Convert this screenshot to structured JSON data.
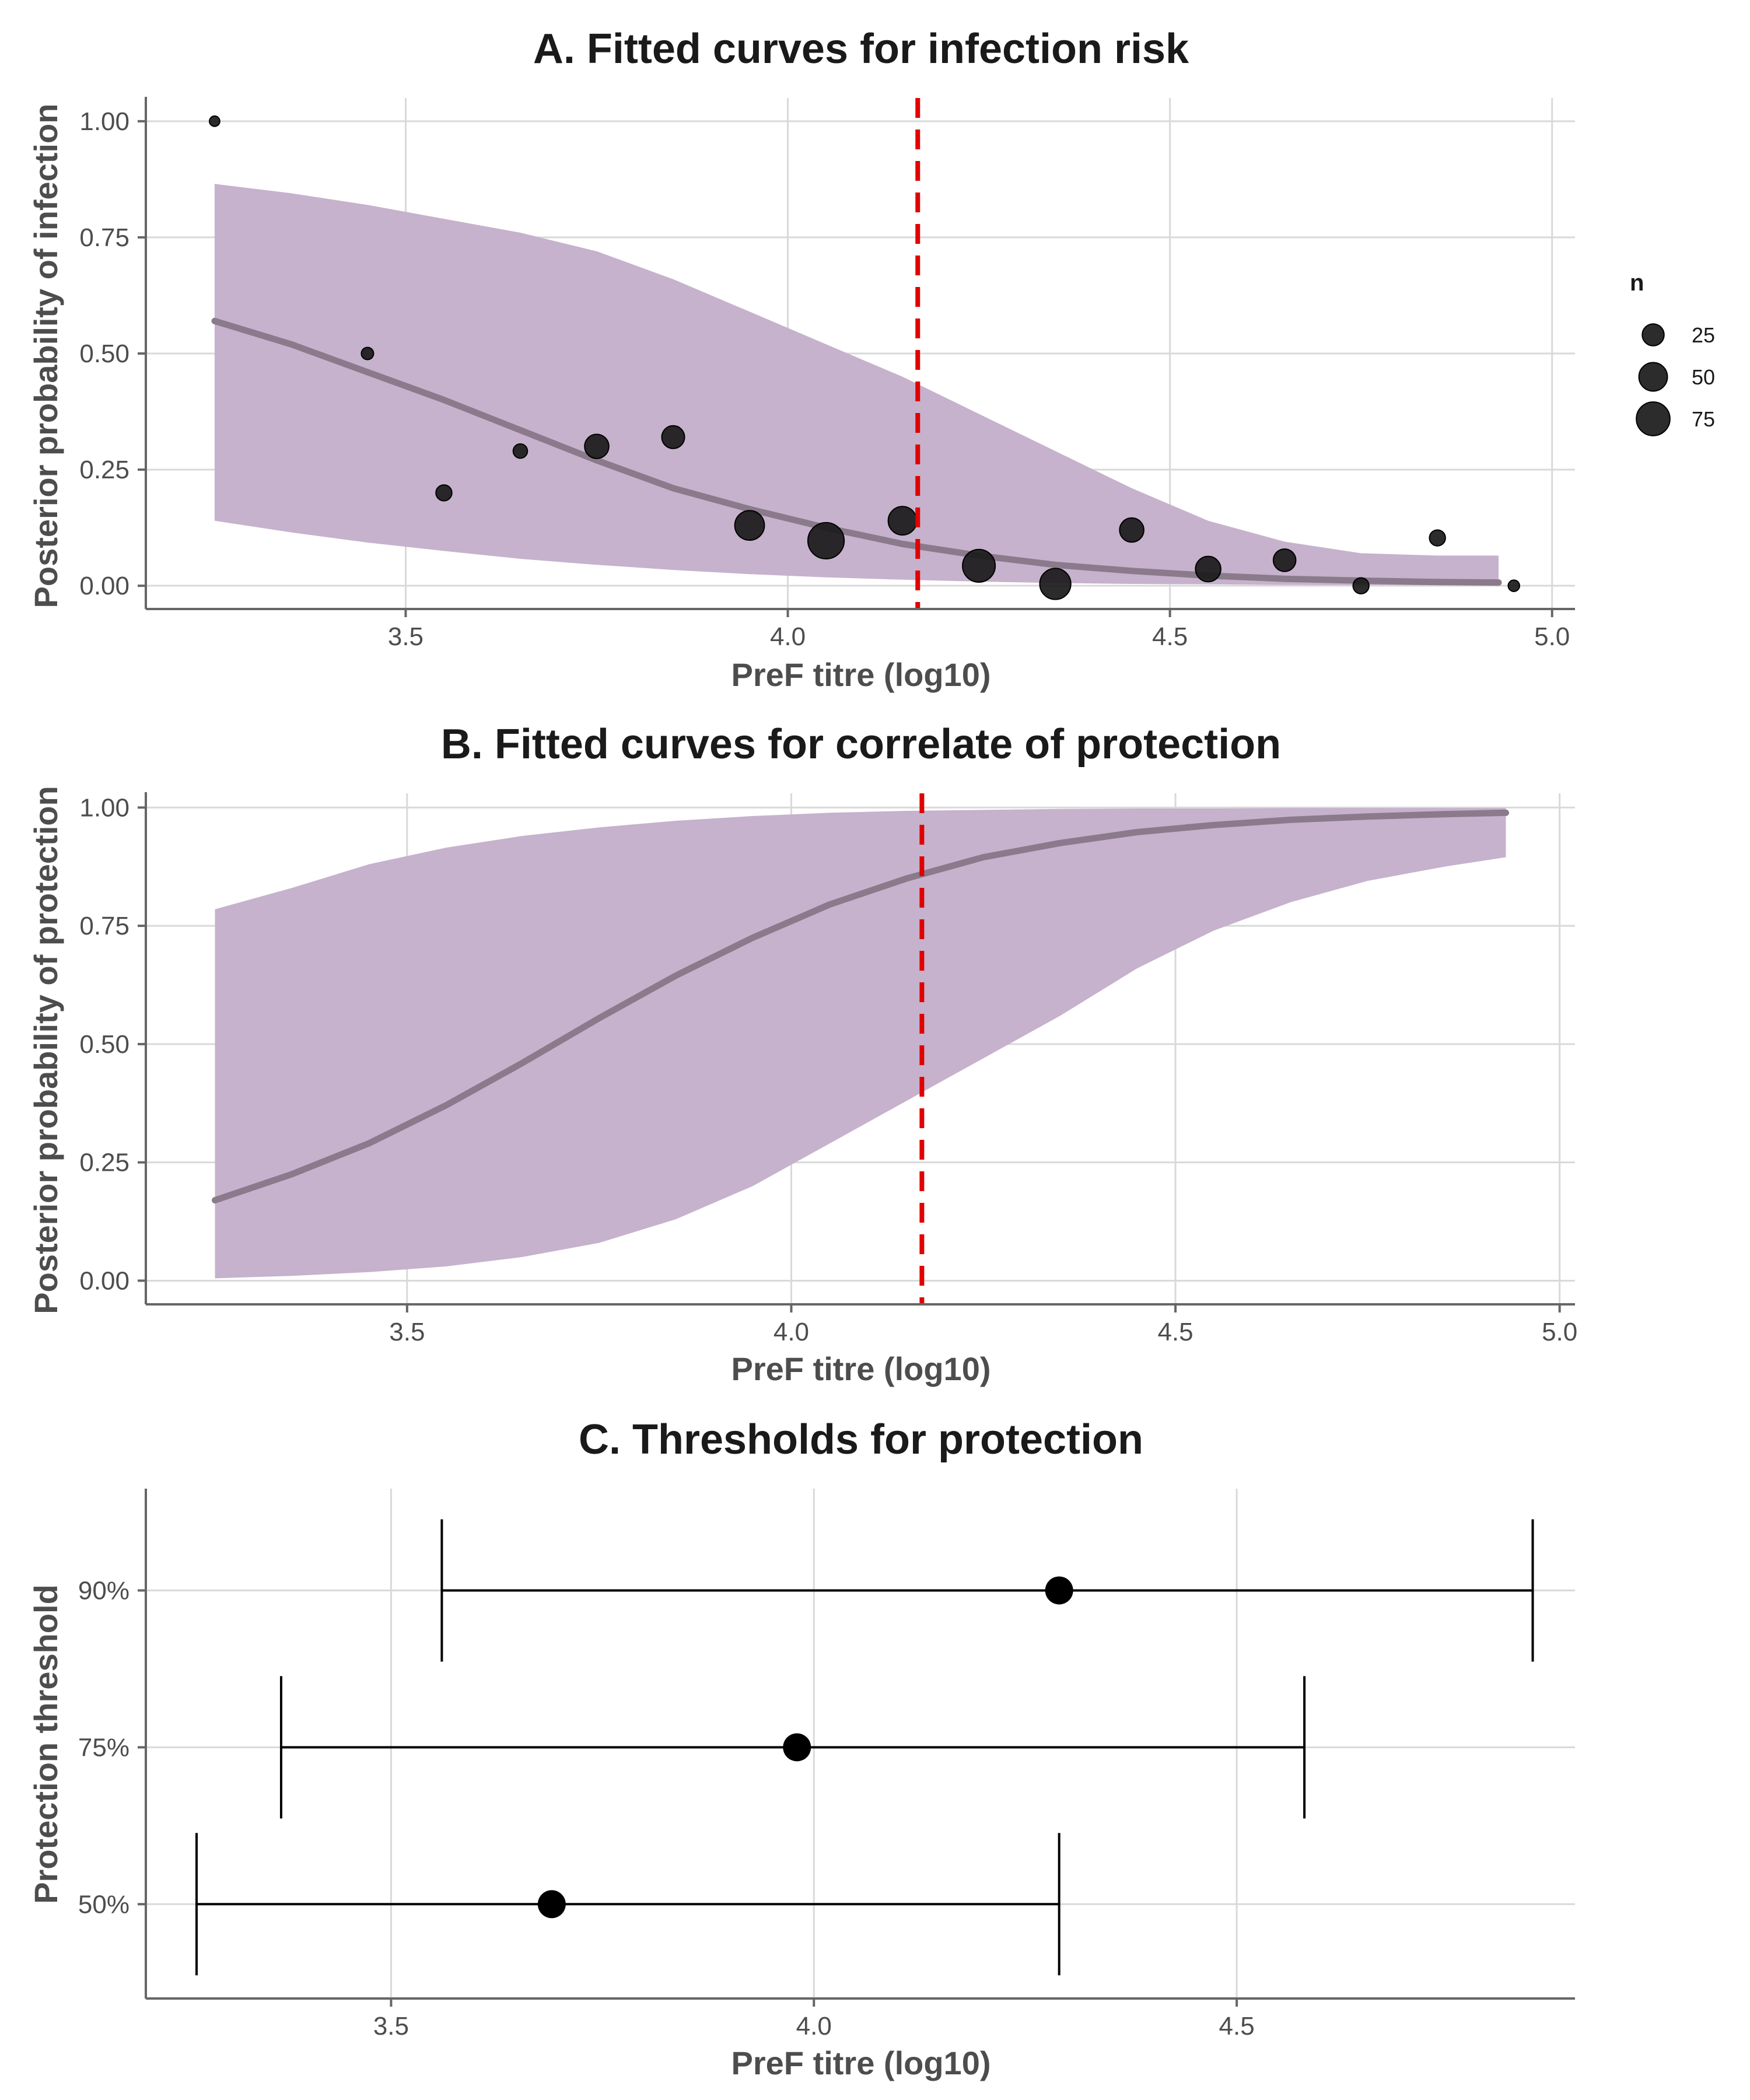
{
  "colors": {
    "band": "#c6b2cc",
    "curve": "#8a7a8c",
    "threshold_line": "#e00000",
    "points": "#1a1a1a",
    "grid": "#d9d9d9",
    "axis": "#666666"
  },
  "chart_data": [
    {
      "id": "A",
      "type": "scatter",
      "title": "A. Fitted curves for infection risk",
      "xlabel": "PreF titre (log10)",
      "ylabel": "Posterior probability of infection",
      "xlim": [
        3.16,
        5.03
      ],
      "ylim": [
        -0.05,
        1.05
      ],
      "x_ticks": [
        3.5,
        4.0,
        4.5,
        5.0
      ],
      "x_tick_labels": [
        "3.5",
        "4.0",
        "4.5",
        "5.0"
      ],
      "y_ticks": [
        0,
        0.25,
        0.5,
        0.75,
        1.0
      ],
      "y_tick_labels": [
        "0.00",
        "0.25",
        "0.50",
        "0.75",
        "1.00"
      ],
      "grid": true,
      "threshold_x": 4.17,
      "curve": {
        "x": [
          3.25,
          3.35,
          3.45,
          3.55,
          3.65,
          3.75,
          3.85,
          3.95,
          4.05,
          4.15,
          4.25,
          4.35,
          4.45,
          4.55,
          4.65,
          4.75,
          4.85,
          4.93
        ],
        "y": [
          0.57,
          0.52,
          0.46,
          0.4,
          0.335,
          0.27,
          0.21,
          0.165,
          0.125,
          0.09,
          0.065,
          0.045,
          0.032,
          0.022,
          0.015,
          0.011,
          0.008,
          0.007
        ],
        "lower": [
          0.14,
          0.115,
          0.093,
          0.075,
          0.058,
          0.045,
          0.034,
          0.025,
          0.018,
          0.013,
          0.009,
          0.006,
          0.004,
          0.003,
          0.002,
          0.0015,
          0.001,
          0.001
        ],
        "upper": [
          0.865,
          0.845,
          0.82,
          0.79,
          0.76,
          0.72,
          0.66,
          0.59,
          0.52,
          0.45,
          0.37,
          0.29,
          0.21,
          0.14,
          0.095,
          0.07,
          0.065,
          0.065
        ]
      },
      "points": [
        {
          "x": 3.25,
          "y": 1.0,
          "n": 2
        },
        {
          "x": 3.45,
          "y": 0.5,
          "n": 4
        },
        {
          "x": 3.55,
          "y": 0.2,
          "n": 10
        },
        {
          "x": 3.65,
          "y": 0.29,
          "n": 7
        },
        {
          "x": 3.75,
          "y": 0.3,
          "n": 33
        },
        {
          "x": 3.85,
          "y": 0.32,
          "n": 28
        },
        {
          "x": 3.95,
          "y": 0.13,
          "n": 55
        },
        {
          "x": 4.05,
          "y": 0.097,
          "n": 90
        },
        {
          "x": 4.15,
          "y": 0.14,
          "n": 50
        },
        {
          "x": 4.25,
          "y": 0.043,
          "n": 70
        },
        {
          "x": 4.35,
          "y": 0.004,
          "n": 62
        },
        {
          "x": 4.45,
          "y": 0.12,
          "n": 33
        },
        {
          "x": 4.55,
          "y": 0.036,
          "n": 37
        },
        {
          "x": 4.65,
          "y": 0.055,
          "n": 27
        },
        {
          "x": 4.75,
          "y": 0.0,
          "n": 10
        },
        {
          "x": 4.85,
          "y": 0.103,
          "n": 10
        },
        {
          "x": 4.95,
          "y": 0.0,
          "n": 3
        }
      ],
      "legend": {
        "title": "n",
        "placement": "right",
        "entries": [
          {
            "label": "25",
            "n": 25
          },
          {
            "label": "50",
            "n": 50
          },
          {
            "label": "75",
            "n": 75
          }
        ]
      }
    },
    {
      "id": "B",
      "type": "line",
      "title": "B. Fitted curves for correlate of protection",
      "xlabel": "PreF titre (log10)",
      "ylabel": "Posterior probability of protection",
      "xlim": [
        3.16,
        5.02
      ],
      "ylim": [
        -0.05,
        1.03
      ],
      "x_ticks": [
        3.5,
        4.0,
        4.5,
        5.0
      ],
      "x_tick_labels": [
        "3.5",
        "4.0",
        "4.5",
        "5.0"
      ],
      "y_ticks": [
        0,
        0.25,
        0.5,
        0.75,
        1.0
      ],
      "y_tick_labels": [
        "0.00",
        "0.25",
        "0.50",
        "0.75",
        "1.00"
      ],
      "grid": true,
      "threshold_x": 4.17,
      "curve": {
        "x": [
          3.25,
          3.35,
          3.45,
          3.55,
          3.65,
          3.75,
          3.85,
          3.95,
          4.05,
          4.15,
          4.25,
          4.35,
          4.45,
          4.55,
          4.65,
          4.75,
          4.85,
          4.93
        ],
        "y": [
          0.17,
          0.225,
          0.29,
          0.37,
          0.46,
          0.555,
          0.645,
          0.725,
          0.795,
          0.85,
          0.895,
          0.925,
          0.948,
          0.963,
          0.974,
          0.981,
          0.986,
          0.989
        ],
        "lower": [
          0.005,
          0.01,
          0.018,
          0.03,
          0.05,
          0.08,
          0.13,
          0.2,
          0.29,
          0.38,
          0.47,
          0.56,
          0.66,
          0.74,
          0.8,
          0.845,
          0.875,
          0.895
        ],
        "upper": [
          0.785,
          0.83,
          0.88,
          0.915,
          0.94,
          0.958,
          0.972,
          0.982,
          0.989,
          0.993,
          0.995,
          0.997,
          0.998,
          0.998,
          0.999,
          0.999,
          0.999,
          0.999
        ]
      }
    },
    {
      "id": "C",
      "type": "scatter",
      "title": "C. Thresholds for protection",
      "xlabel": "PreF titre (log10)",
      "ylabel": "Protection threshold",
      "xlim": [
        3.21,
        4.9
      ],
      "x_ticks": [
        3.5,
        4.0,
        4.5
      ],
      "x_tick_labels": [
        "3.5",
        "4.0",
        "4.5"
      ],
      "categories": [
        "90%",
        "75%",
        "50%"
      ],
      "grid": true,
      "estimates": [
        {
          "label": "90%",
          "value": 4.29,
          "lower": 3.56,
          "upper": 4.85
        },
        {
          "label": "75%",
          "value": 3.98,
          "lower": 3.37,
          "upper": 4.58
        },
        {
          "label": "50%",
          "value": 3.69,
          "lower": 3.27,
          "upper": 4.29
        }
      ]
    }
  ]
}
